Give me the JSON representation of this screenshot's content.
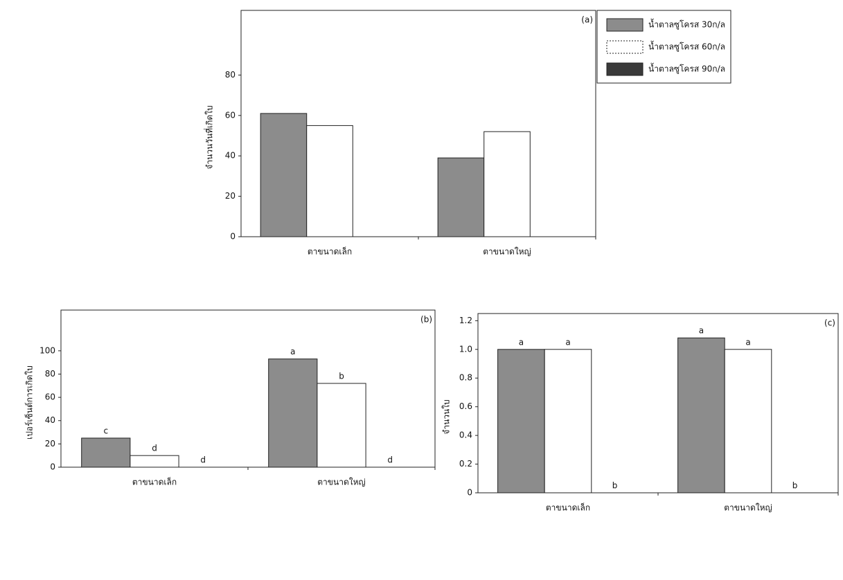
{
  "chart_data": [
    {
      "type": "bar",
      "panel": "(a)",
      "ylabel": "จำนวนวันที่เกิดใบ",
      "categories": [
        "ตาขนาดเล็ก",
        "ตาขนาดใหญ่"
      ],
      "series": [
        {
          "name": "น้ำตาลซูโครส 30ก/ล",
          "color": "#8c8c8c",
          "values": [
            61,
            39
          ]
        },
        {
          "name": "น้ำตาลซูโครส 60ก/ล",
          "color": "#ffffff",
          "values": [
            55,
            52
          ]
        },
        {
          "name": "น้ำตาลซูโครส 90ก/ล",
          "color": "#3a3a3a",
          "values": [
            null,
            null
          ]
        }
      ],
      "ylim": [
        0,
        112
      ],
      "yticks": [
        0,
        20,
        40,
        60,
        80
      ]
    },
    {
      "type": "bar",
      "panel": "(b)",
      "ylabel": "เปอร์เซ็นต์การเกิดใบ",
      "categories": [
        "ตาขนาดเล็ก",
        "ตาขนาดใหญ่"
      ],
      "series": [
        {
          "color": "#8c8c8c",
          "values": [
            25,
            93
          ],
          "value_labels": [
            "c",
            "a"
          ]
        },
        {
          "color": "#ffffff",
          "values": [
            10,
            72
          ],
          "value_labels": [
            "d",
            "b"
          ]
        },
        {
          "color": "#3a3a3a",
          "values": [
            0,
            0
          ],
          "value_labels": [
            "d",
            "d"
          ]
        }
      ],
      "ylim": [
        0,
        135
      ],
      "yticks": [
        0,
        20,
        40,
        60,
        80,
        100
      ]
    },
    {
      "type": "bar",
      "panel": "(c)",
      "ylabel": "จำนวนใบ",
      "categories": [
        "ตาขนาดเล็ก",
        "ตาขนาดใหญ่"
      ],
      "series": [
        {
          "color": "#8c8c8c",
          "values": [
            1.0,
            1.08
          ],
          "value_labels": [
            "a",
            "a"
          ]
        },
        {
          "color": "#ffffff",
          "values": [
            1.0,
            1.0
          ],
          "value_labels": [
            "a",
            "a"
          ]
        },
        {
          "color": "#3a3a3a",
          "values": [
            0,
            0
          ],
          "value_labels": [
            "b",
            "b"
          ]
        }
      ],
      "ylim": [
        0,
        1.25
      ],
      "yticks": [
        0,
        0.2,
        0.4,
        0.6,
        0.8,
        {
          "value": 1,
          "label": "1.0"
        },
        1.2
      ]
    }
  ]
}
